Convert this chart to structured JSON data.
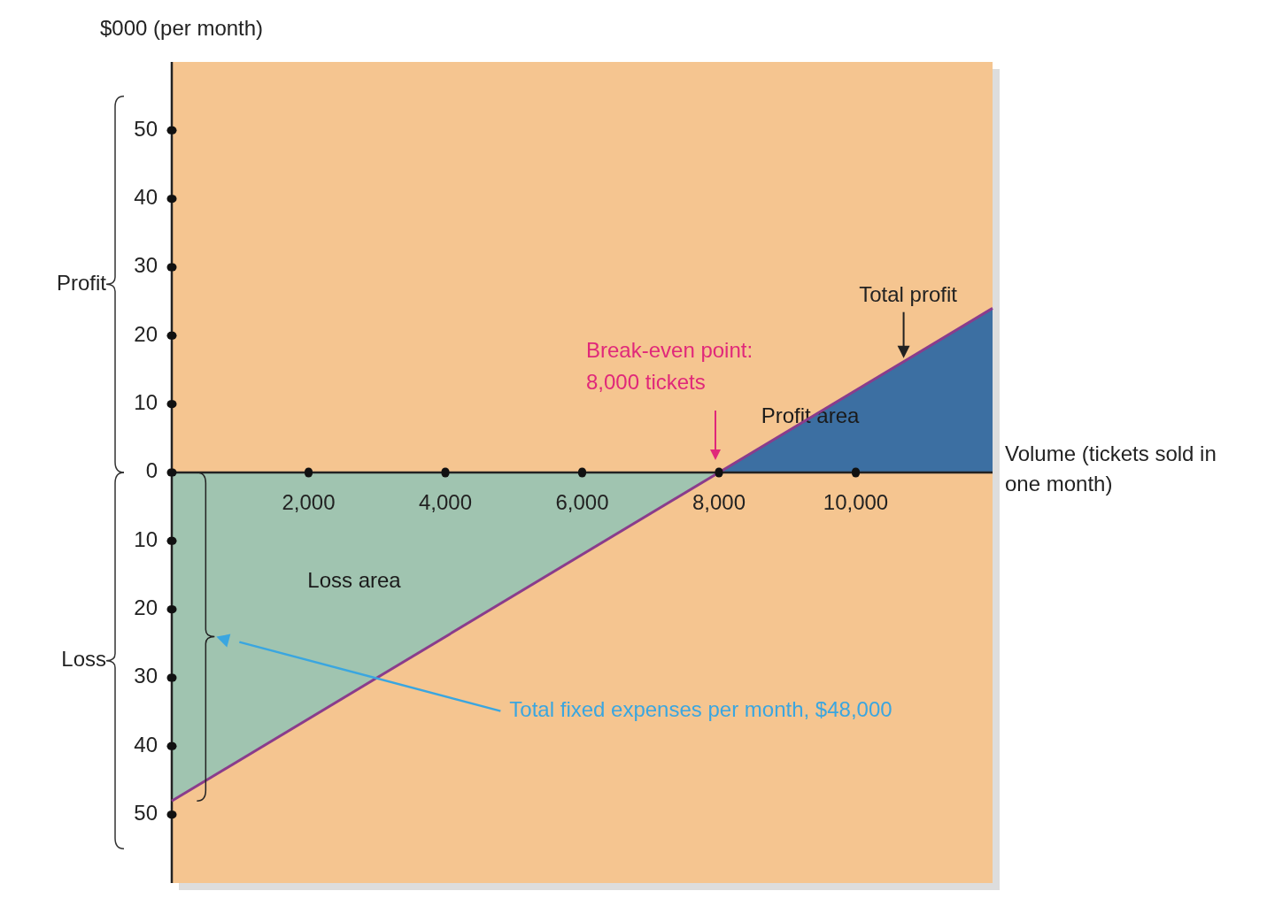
{
  "chart_data": {
    "type": "area",
    "ylabel": "$000 (per month)",
    "xlabel": "Volume (tickets sold in one month)",
    "xlim": [
      0,
      12000
    ],
    "ylim": [
      -60,
      60
    ],
    "xticks": [
      {
        "value": 2000,
        "label": "2,000"
      },
      {
        "value": 4000,
        "label": "4,000"
      },
      {
        "value": 6000,
        "label": "6,000"
      },
      {
        "value": 8000,
        "label": "8,000"
      },
      {
        "value": 10000,
        "label": "10,000"
      }
    ],
    "yticks": [
      {
        "value": -50,
        "label": "50"
      },
      {
        "value": -40,
        "label": "40"
      },
      {
        "value": -30,
        "label": "30"
      },
      {
        "value": -20,
        "label": "20"
      },
      {
        "value": -10,
        "label": "10"
      },
      0,
      10,
      20,
      30,
      40,
      50
    ],
    "series": [
      {
        "name": "Loss area",
        "color": "#a0c4b0",
        "x": [
          0,
          8000
        ],
        "values": [
          -48,
          0
        ]
      },
      {
        "name": "Profit area",
        "color": "#3c6fa2",
        "x": [
          8000,
          12000
        ],
        "values": [
          0,
          24
        ]
      },
      {
        "type": "line",
        "color": "#8a3c8c",
        "x": [
          0,
          12000
        ],
        "values": [
          -48,
          24
        ]
      }
    ],
    "annotations": [
      "Profit",
      "Loss",
      "Break-even point: 8,000 tickets",
      {
        "text": "Total profit",
        "x": 10700,
        "y": 16.2
      },
      "Total fixed expenses per month, $48,000"
    ],
    "grid": false
  }
}
